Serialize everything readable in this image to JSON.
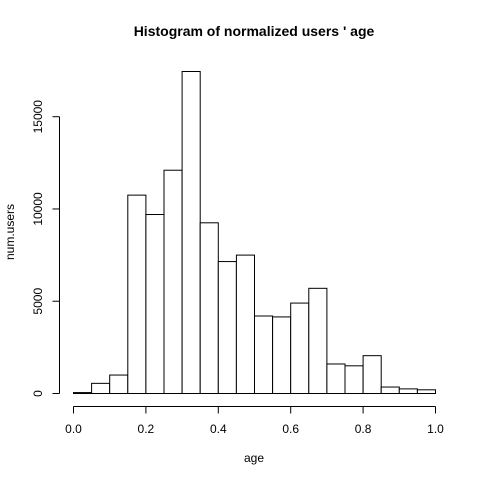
{
  "chart_data": {
    "type": "bar",
    "title": "Histogram of normalized users ' age",
    "xlabel": "age",
    "ylabel": "num.users",
    "bin_edges": [
      0,
      0.05,
      0.1,
      0.15,
      0.2,
      0.25,
      0.3,
      0.35,
      0.4,
      0.45,
      0.5,
      0.55,
      0.6,
      0.65,
      0.7,
      0.75,
      0.8,
      0.85,
      0.9,
      0.95,
      1.0
    ],
    "values": [
      50,
      550,
      1000,
      10750,
      9700,
      12100,
      17450,
      9250,
      7150,
      7500,
      4200,
      4150,
      4900,
      5700,
      1600,
      1500,
      2050,
      350,
      250,
      200
    ],
    "xlim": [
      0,
      1
    ],
    "ylim": [
      0,
      17450
    ],
    "x_ticks": [
      "0.0",
      "0.2",
      "0.4",
      "0.6",
      "0.8",
      "1.0"
    ],
    "y_ticks": [
      "0",
      "5000",
      "10000",
      "15000"
    ],
    "grid": false,
    "legend": "none"
  }
}
